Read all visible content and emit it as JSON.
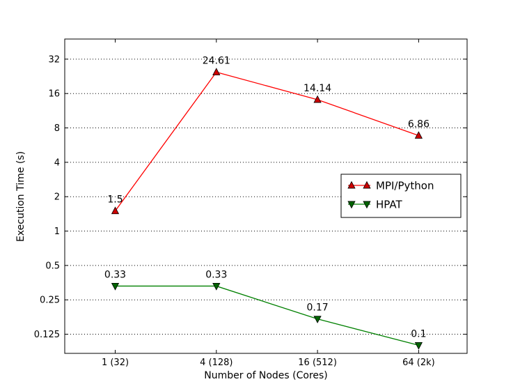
{
  "chart_data": {
    "type": "line",
    "title": "",
    "xlabel": "Number of Nodes (Cores)",
    "ylabel": "Execution Time (s)",
    "yscale": "log2",
    "ylim": [
      0.085,
      48
    ],
    "grid": "horizontal dotted",
    "legend_position": "right",
    "categories": [
      "1 (32)",
      "4 (128)",
      "16 (512)",
      "64 (2k)"
    ],
    "y_ticks": [
      0.125,
      0.25,
      0.5,
      1,
      2,
      4,
      8,
      16,
      32
    ],
    "y_tick_labels": [
      "0.125",
      "0.25",
      "0.5",
      "1",
      "2",
      "4",
      "8",
      "16",
      "32"
    ],
    "series": [
      {
        "name": "MPI/Python",
        "values": [
          1.5,
          24.61,
          14.14,
          6.86
        ],
        "labels": [
          "1.5",
          "24.61",
          "14.14",
          "6.86"
        ],
        "color": "#ff0000",
        "marker_fill": "#cc0000",
        "marker": "triangle-up"
      },
      {
        "name": "HPAT",
        "values": [
          0.33,
          0.33,
          0.17,
          0.1
        ],
        "labels": [
          "0.33",
          "0.33",
          "0.17",
          "0.1"
        ],
        "color": "#008000",
        "marker_fill": "#006400",
        "marker": "triangle-down"
      }
    ]
  }
}
